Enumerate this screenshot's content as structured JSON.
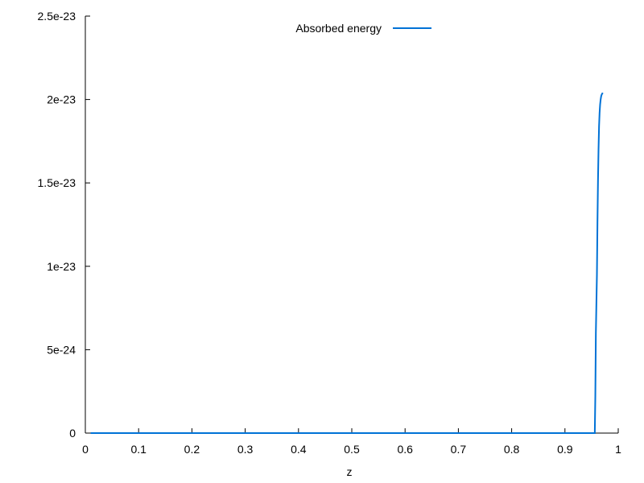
{
  "chart_data": {
    "type": "line",
    "title": "",
    "xlabel": "z",
    "ylabel": "",
    "xlim": [
      0,
      1
    ],
    "ylim": [
      0,
      2.5e-23
    ],
    "grid": false,
    "legend_position": "top-center",
    "x_ticks": [
      0,
      0.1,
      0.2,
      0.3,
      0.4,
      0.5,
      0.6,
      0.7,
      0.8,
      0.9,
      1
    ],
    "x_tick_labels": [
      "0",
      "0.1",
      "0.2",
      "0.3",
      "0.4",
      "0.5",
      "0.6",
      "0.7",
      "0.8",
      "0.9",
      "1"
    ],
    "y_ticks": [
      0,
      5e-24,
      1e-23,
      1.5e-23,
      2e-23,
      2.5e-23
    ],
    "y_tick_labels": [
      "0",
      "5e-24",
      "1e-23",
      "1.5e-23",
      "2e-23",
      "2.5e-23"
    ],
    "series": [
      {
        "name": "Absorbed energy",
        "color": "#0072d6",
        "x": [
          0.01,
          0.2,
          0.4,
          0.6,
          0.8,
          0.9,
          0.95,
          0.956,
          0.957,
          0.958,
          0.96,
          0.961,
          0.962,
          0.963,
          0.964,
          0.965,
          0.966,
          0.967,
          0.968,
          0.969,
          0.97,
          0.971
        ],
        "y": [
          0,
          0,
          0,
          0,
          0,
          0,
          0,
          0,
          2.2e-24,
          6e-24,
          9.5e-24,
          1.26e-23,
          1.51e-23,
          1.7e-23,
          1.84e-23,
          1.92e-23,
          1.97e-23,
          2e-23,
          2.02e-23,
          2.03e-23,
          2.035e-23,
          2.04e-23
        ]
      }
    ]
  }
}
